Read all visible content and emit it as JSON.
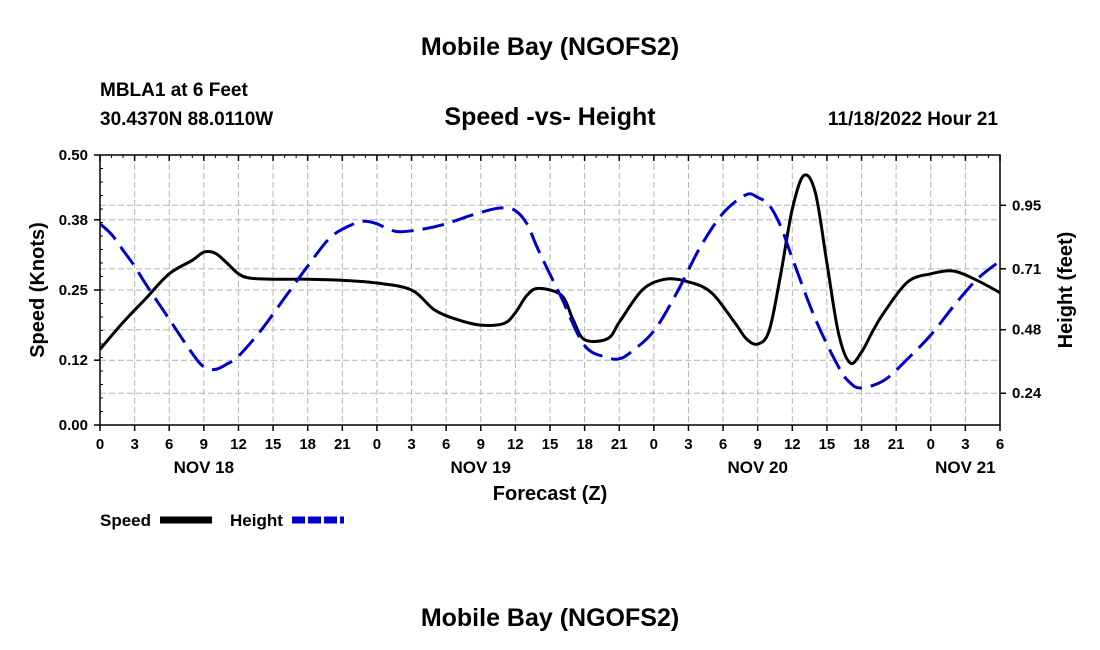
{
  "page": {
    "title_top": "Mobile Bay (NGOFS2)",
    "title_bottom": "Mobile Bay (NGOFS2)"
  },
  "header": {
    "station_line1": "MBLA1 at 6 Feet",
    "station_line2": "30.4370N  88.0110W",
    "subtitle": "Speed -vs- Height",
    "datetime": "11/18/2022 Hour 21"
  },
  "legend": {
    "speed_label": "Speed",
    "height_label": "Height"
  },
  "colors": {
    "speed": "#000000",
    "height": "#0000cc",
    "grid": "#b4b4b4"
  },
  "chart_data": {
    "type": "line",
    "title": "Speed -vs- Height",
    "xlabel": "Forecast (Z)",
    "ylabel_left": "Speed (Knots)",
    "ylabel_right": "Height (feet)",
    "x_hours_range": [
      0,
      78
    ],
    "x_tick_labels": [
      "0",
      "3",
      "6",
      "9",
      "12",
      "15",
      "18",
      "21",
      "0",
      "3",
      "6",
      "9",
      "12",
      "15",
      "18",
      "21",
      "0",
      "3",
      "6",
      "9",
      "12",
      "15",
      "18",
      "21",
      "0",
      "3",
      "6"
    ],
    "x_day_labels": [
      {
        "hour": 9,
        "label": "NOV 18"
      },
      {
        "hour": 33,
        "label": "NOV 19"
      },
      {
        "hour": 57,
        "label": "NOV 20"
      },
      {
        "hour": 75,
        "label": "NOV 21"
      }
    ],
    "y_left": {
      "range": [
        0,
        0.5
      ],
      "ticks": [
        0,
        0.12,
        0.25,
        0.38,
        0.5
      ],
      "tick_labels": [
        "0.00",
        "0.12",
        "0.25",
        "0.38",
        "0.50"
      ]
    },
    "y_right": {
      "range": [
        0.12,
        1.14
      ],
      "ticks": [
        0.24,
        0.48,
        0.71,
        0.95
      ],
      "tick_labels": [
        "0.24",
        "0.48",
        "0.71",
        "0.95"
      ]
    },
    "grid": true,
    "legend_position": "bottom-left",
    "series": [
      {
        "name": "Speed",
        "axis": "left",
        "style": "solid",
        "x": [
          0,
          2,
          4,
          6,
          8,
          9,
          10,
          11,
          12,
          13,
          15,
          18,
          21,
          24,
          27,
          29,
          31,
          33,
          35,
          36,
          37,
          38,
          40,
          41,
          42,
          44,
          45,
          47,
          49,
          51,
          53,
          55,
          56,
          57,
          58,
          59,
          60,
          61,
          62,
          63,
          64,
          65,
          66,
          67,
          68,
          70,
          72,
          74,
          76,
          78
        ],
        "y": [
          0.14,
          0.19,
          0.235,
          0.28,
          0.305,
          0.32,
          0.318,
          0.3,
          0.28,
          0.272,
          0.27,
          0.27,
          0.268,
          0.263,
          0.25,
          0.213,
          0.195,
          0.185,
          0.188,
          0.208,
          0.24,
          0.253,
          0.24,
          0.195,
          0.158,
          0.16,
          0.19,
          0.25,
          0.27,
          0.265,
          0.245,
          0.19,
          0.16,
          0.15,
          0.175,
          0.28,
          0.4,
          0.462,
          0.43,
          0.3,
          0.17,
          0.115,
          0.135,
          0.175,
          0.21,
          0.265,
          0.28,
          0.285,
          0.268,
          0.245
        ]
      },
      {
        "name": "Height",
        "axis": "right",
        "style": "dashed",
        "x": [
          0,
          1,
          2,
          3,
          4,
          6,
          8,
          9,
          10,
          11,
          12,
          14,
          16,
          18,
          20,
          22,
          23,
          24,
          25,
          26,
          28,
          30,
          32,
          34,
          35,
          36,
          37,
          38,
          40,
          42,
          44,
          45,
          46,
          48,
          50,
          52,
          54,
          56,
          57,
          58,
          59,
          60,
          62,
          64,
          65,
          66,
          68,
          70,
          72,
          74,
          76,
          78
        ],
        "y": [
          0.88,
          0.84,
          0.78,
          0.72,
          0.65,
          0.52,
          0.39,
          0.34,
          0.33,
          0.35,
          0.38,
          0.48,
          0.6,
          0.72,
          0.83,
          0.88,
          0.89,
          0.88,
          0.86,
          0.85,
          0.86,
          0.88,
          0.91,
          0.935,
          0.94,
          0.93,
          0.88,
          0.78,
          0.6,
          0.42,
          0.375,
          0.37,
          0.395,
          0.475,
          0.62,
          0.79,
          0.92,
          0.99,
          0.98,
          0.95,
          0.87,
          0.75,
          0.52,
          0.34,
          0.28,
          0.26,
          0.29,
          0.37,
          0.46,
          0.57,
          0.67,
          0.74
        ]
      }
    ]
  }
}
